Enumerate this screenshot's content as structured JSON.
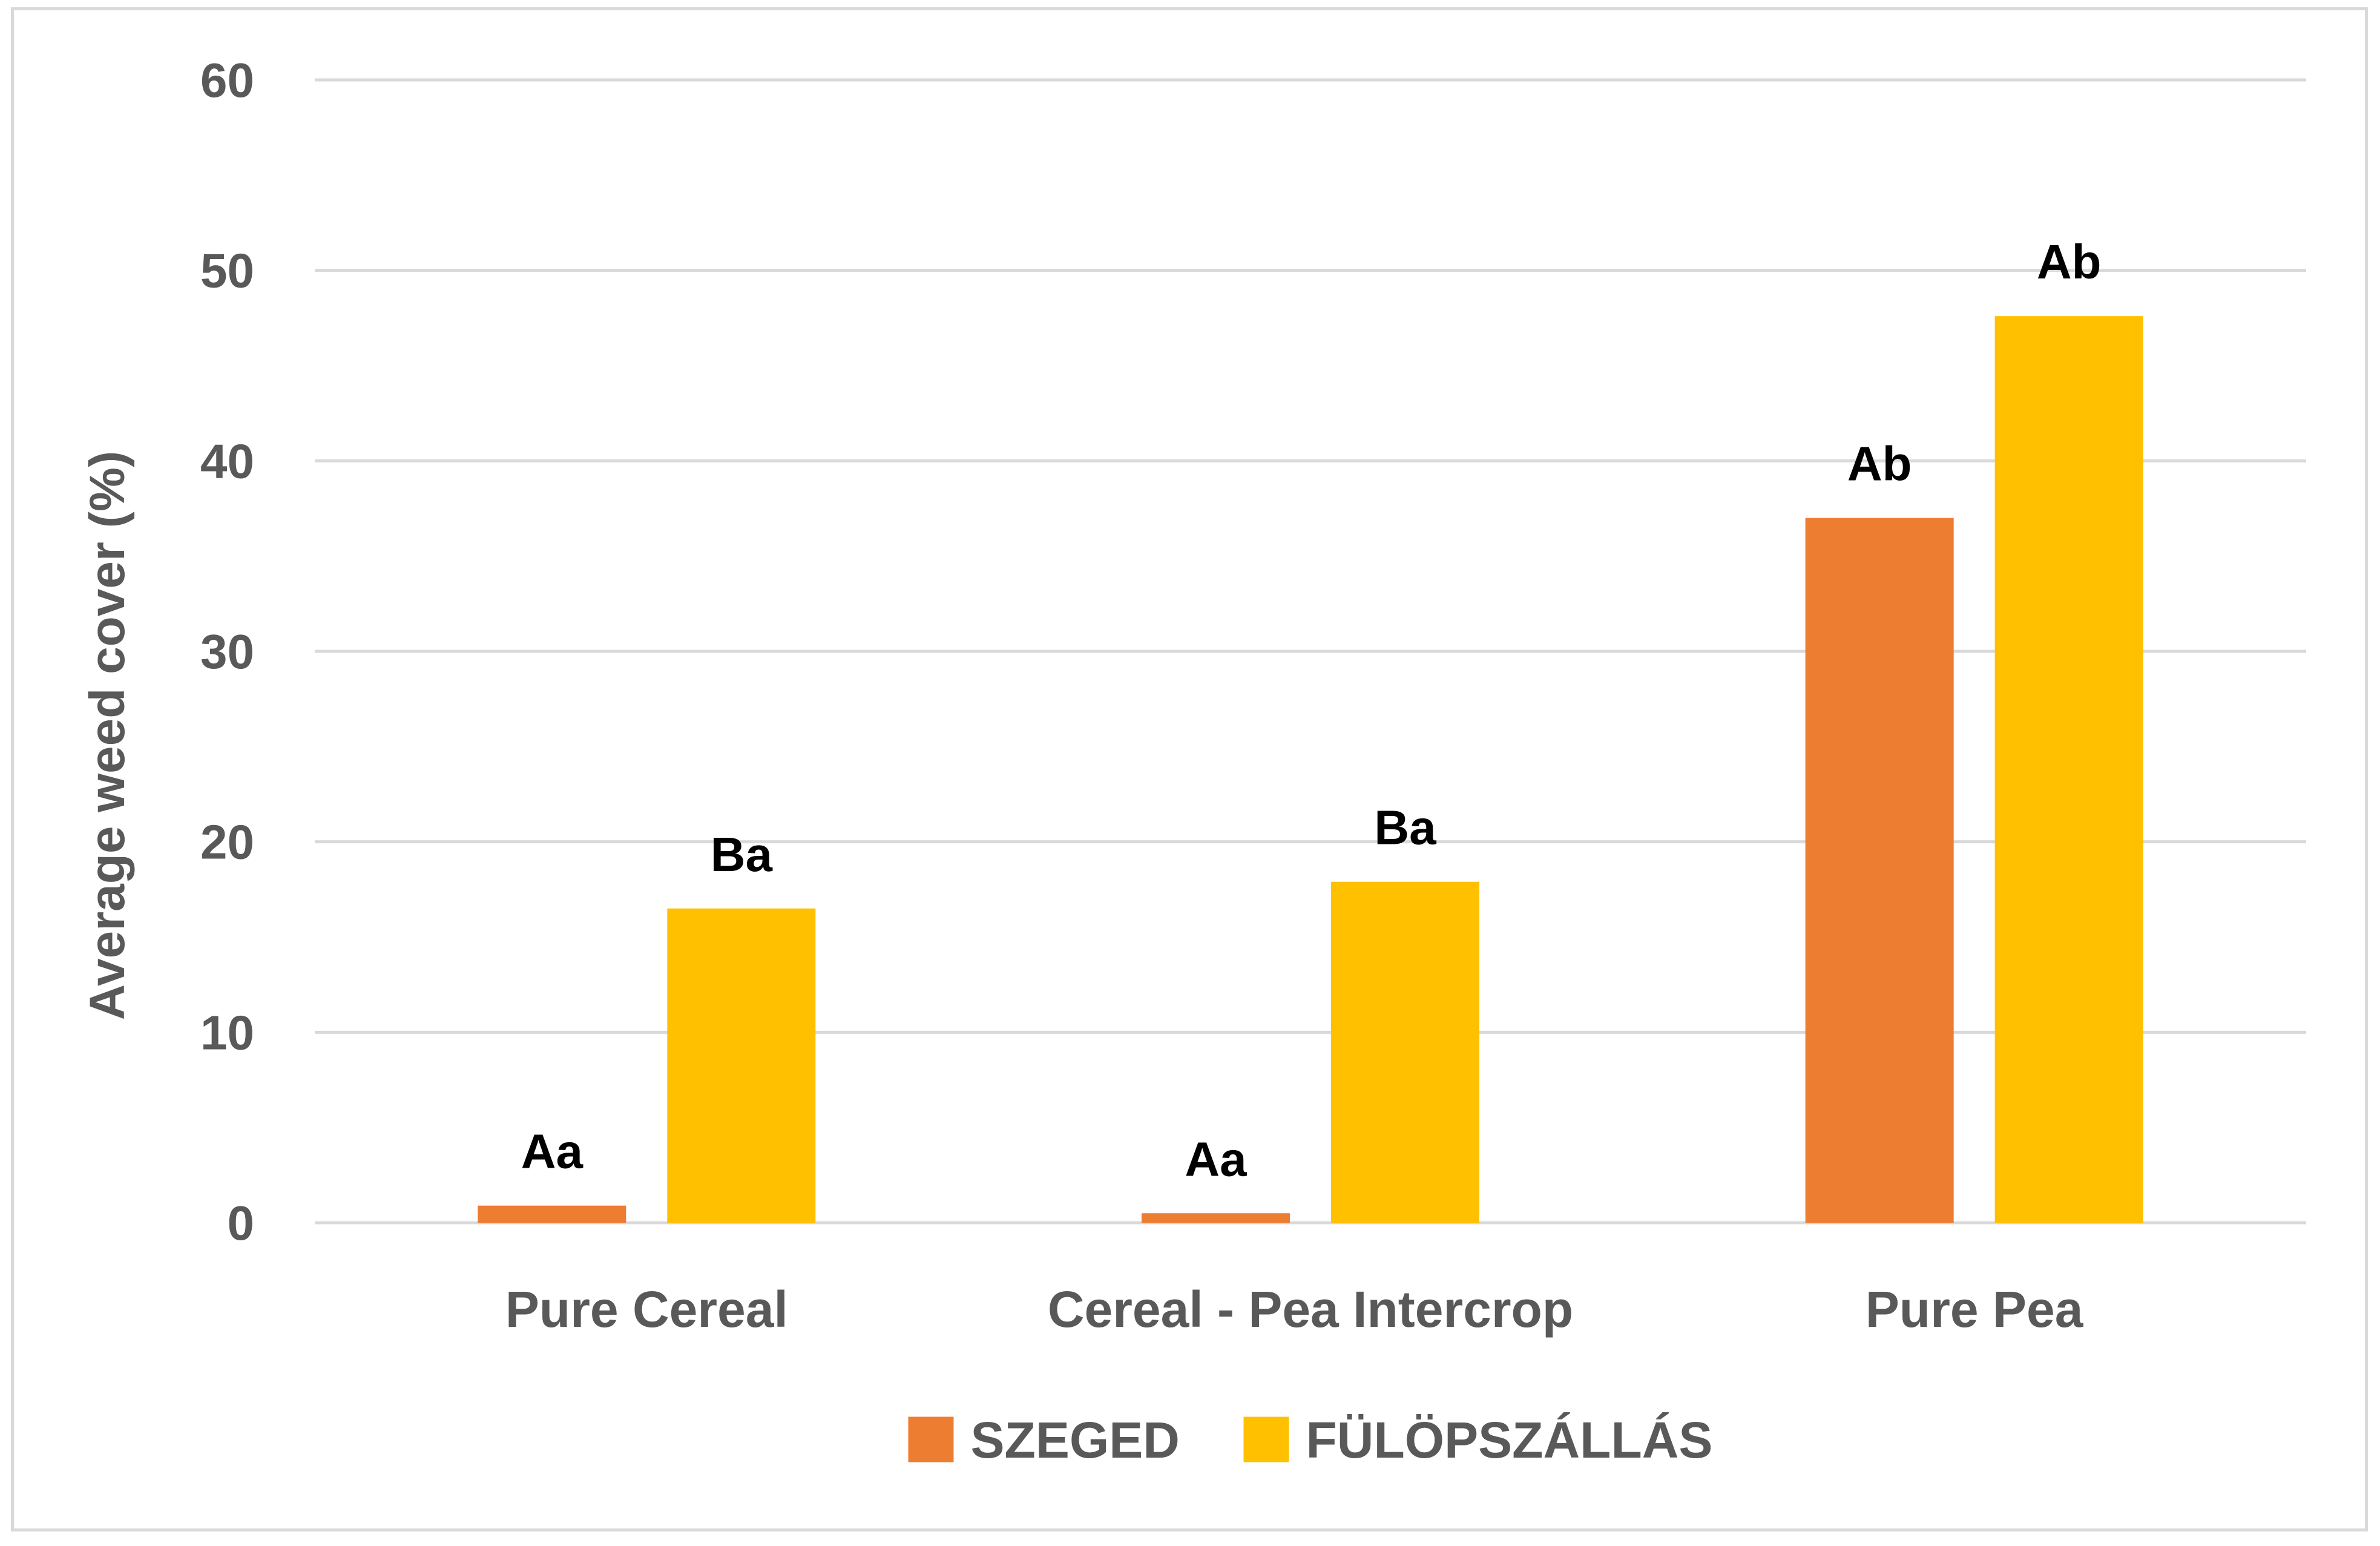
{
  "chart_data": {
    "type": "bar",
    "title": "",
    "xlabel": "",
    "ylabel": "Average weed cover (%)",
    "ylim": [
      0,
      60
    ],
    "yticks": [
      0,
      10,
      20,
      30,
      40,
      50,
      60
    ],
    "grid": true,
    "legend_position": "bottom",
    "categories": [
      "Pure Cereal",
      "Cereal - Pea Intercrop",
      "Pure Pea"
    ],
    "series": [
      {
        "name": "SZEGED",
        "color": "#ED7D31",
        "values": [
          0.9,
          0.5,
          37.0
        ],
        "labels": [
          "Aa",
          "Aa",
          "Ab"
        ]
      },
      {
        "name": "FÜLÖPSZÁLLÁS",
        "color": "#FFC000",
        "values": [
          16.5,
          17.9,
          47.6
        ],
        "labels": [
          "Ba",
          "Ba",
          "Ab"
        ]
      }
    ]
  }
}
